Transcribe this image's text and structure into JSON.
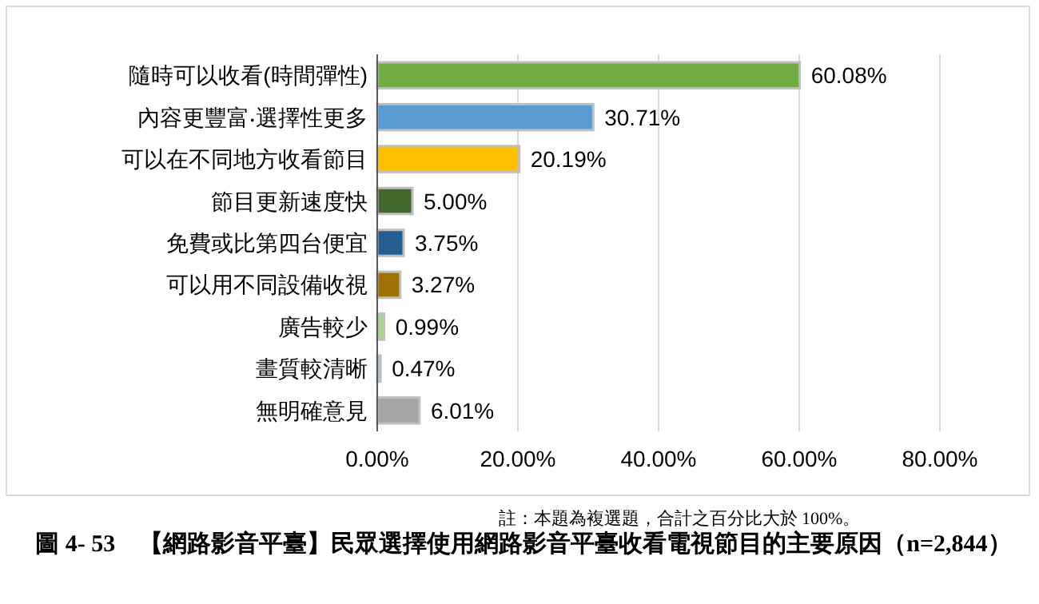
{
  "chart_data": {
    "type": "bar",
    "orientation": "horizontal",
    "title": "圖 4- 53　【網路影音平臺】民眾選擇使用網路影音平臺收看電視節目的主要原因（n=2,844）",
    "categories": [
      "隨時可以收看(時間彈性)",
      "內容更豐富‧選擇性更多",
      "可以在不同地方收看節目",
      "節目更新速度快",
      "免費或比第四台便宜",
      "可以用不同設備收視",
      "廣告較少",
      "畫質較清晰",
      "無明確意見"
    ],
    "values": [
      60.08,
      30.71,
      20.19,
      5.0,
      3.75,
      3.27,
      0.99,
      0.47,
      6.01
    ],
    "value_labels": [
      "60.08%",
      "30.71%",
      "20.19%",
      "5.00%",
      "3.75%",
      "3.27%",
      "0.99%",
      "0.47%",
      "6.01%"
    ],
    "colors": [
      "#70ad47",
      "#5b9bd5",
      "#ffc000",
      "#43682b",
      "#255e91",
      "#9e7206",
      "#a9d18e",
      "#9dc3e6",
      "#a5a5a5"
    ],
    "xlim": [
      0,
      80
    ],
    "xticks": [
      {
        "value": 0,
        "label": "0.00%"
      },
      {
        "value": 20,
        "label": "20.00%"
      },
      {
        "value": 40,
        "label": "40.00%"
      },
      {
        "value": 60,
        "label": "60.00%"
      },
      {
        "value": 80,
        "label": "80.00%"
      }
    ],
    "grid": "x",
    "annotations": [
      "註：本題為複選題，合計之百分比大於 100%。"
    ]
  }
}
